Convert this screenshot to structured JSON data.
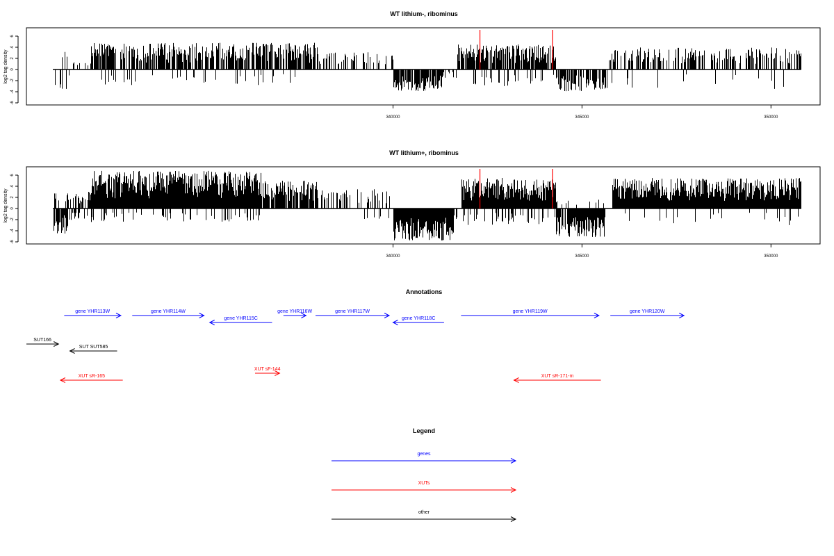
{
  "chart_data": [
    {
      "type": "bar",
      "title": "WT lithium-, ribominus",
      "ylabel": "log2 tag density",
      "xlabel": "",
      "xlim": [
        330300,
        351300
      ],
      "ylim": [
        -6,
        7.5
      ],
      "yticks": [
        -6,
        -4,
        -2,
        0,
        2,
        4,
        6
      ],
      "xticks": [
        340000,
        345000,
        350000
      ],
      "marker_lines": [
        342300,
        344220
      ],
      "grid": false,
      "region_start": 331000,
      "region_end": 350800,
      "segments": [
        {
          "start": 331000,
          "end": 331500,
          "strand": "plus",
          "density": 0.1,
          "max": 3.5
        },
        {
          "start": 331000,
          "end": 331500,
          "strand": "minus",
          "density": 0.15,
          "max": 3.5
        },
        {
          "start": 331500,
          "end": 332000,
          "strand": "plus",
          "density": 0.12,
          "max": 1.5
        },
        {
          "start": 332000,
          "end": 338000,
          "strand": "plus",
          "density": 0.75,
          "max": 4.8
        },
        {
          "start": 332000,
          "end": 338000,
          "strand": "minus",
          "density": 0.1,
          "max": 2.8
        },
        {
          "start": 338000,
          "end": 340000,
          "strand": "plus",
          "density": 0.3,
          "max": 3.2
        },
        {
          "start": 340000,
          "end": 341300,
          "strand": "minus",
          "density": 0.75,
          "max": 4.0
        },
        {
          "start": 341300,
          "end": 341700,
          "strand": "minus",
          "density": 0.3,
          "max": 1.5
        },
        {
          "start": 341700,
          "end": 344300,
          "strand": "plus",
          "density": 0.8,
          "max": 4.5
        },
        {
          "start": 342000,
          "end": 344300,
          "strand": "minus",
          "density": 0.15,
          "max": 3.0
        },
        {
          "start": 344300,
          "end": 345700,
          "strand": "minus",
          "density": 0.75,
          "max": 4.0
        },
        {
          "start": 345700,
          "end": 350800,
          "strand": "plus",
          "density": 0.5,
          "max": 4.0
        },
        {
          "start": 345700,
          "end": 350800,
          "strand": "minus",
          "density": 0.05,
          "max": 3.5
        }
      ]
    },
    {
      "type": "bar",
      "title": "WT lithium+, ribominus",
      "ylabel": "log2 tag density",
      "xlabel": "",
      "xlim": [
        330300,
        351300
      ],
      "ylim": [
        -6,
        7.5
      ],
      "yticks": [
        -6,
        -4,
        -2,
        0,
        2,
        4,
        6
      ],
      "xticks": [
        340000,
        345000,
        350000
      ],
      "marker_lines": [
        342300,
        344220
      ],
      "grid": false,
      "region_start": 331000,
      "region_end": 350800,
      "segments": [
        {
          "start": 331000,
          "end": 331400,
          "strand": "minus",
          "density": 0.9,
          "max": 4.5
        },
        {
          "start": 331000,
          "end": 331400,
          "strand": "plus",
          "density": 0.4,
          "max": 3.0
        },
        {
          "start": 331400,
          "end": 332000,
          "strand": "plus",
          "density": 0.5,
          "max": 3.0
        },
        {
          "start": 331400,
          "end": 332000,
          "strand": "minus",
          "density": 0.3,
          "max": 2.5
        },
        {
          "start": 332000,
          "end": 336500,
          "strand": "plus",
          "density": 1.0,
          "max": 6.8
        },
        {
          "start": 332000,
          "end": 336500,
          "strand": "minus",
          "density": 0.2,
          "max": 2.5
        },
        {
          "start": 336500,
          "end": 338000,
          "strand": "plus",
          "density": 0.8,
          "max": 5.0
        },
        {
          "start": 338000,
          "end": 340000,
          "strand": "plus",
          "density": 0.35,
          "max": 3.5
        },
        {
          "start": 339000,
          "end": 340000,
          "strand": "minus",
          "density": 0.1,
          "max": 2.5
        },
        {
          "start": 340000,
          "end": 341600,
          "strand": "minus",
          "density": 1.0,
          "max": 5.8
        },
        {
          "start": 341600,
          "end": 341800,
          "strand": "minus",
          "density": 0.4,
          "max": 2.0
        },
        {
          "start": 341800,
          "end": 344300,
          "strand": "plus",
          "density": 1.0,
          "max": 5.5
        },
        {
          "start": 341800,
          "end": 344300,
          "strand": "minus",
          "density": 0.25,
          "max": 3.0
        },
        {
          "start": 344300,
          "end": 345600,
          "strand": "minus",
          "density": 0.95,
          "max": 5.2
        },
        {
          "start": 344300,
          "end": 345600,
          "strand": "plus",
          "density": 0.15,
          "max": 2.0
        },
        {
          "start": 345800,
          "end": 350800,
          "strand": "plus",
          "density": 1.0,
          "max": 5.5
        },
        {
          "start": 345800,
          "end": 350800,
          "strand": "minus",
          "density": 0.08,
          "max": 3.0
        }
      ]
    }
  ],
  "annotations": {
    "title": "Annotations",
    "xlim": [
      330300,
      351300
    ],
    "items": [
      {
        "label": "gene YHR113W",
        "start": 331300,
        "end": 332800,
        "strand": "+",
        "row": 0,
        "category": "genes"
      },
      {
        "label": "gene YHR114W",
        "start": 333100,
        "end": 335000,
        "strand": "+",
        "row": 0,
        "category": "genes"
      },
      {
        "label": "gene YHR115C",
        "start": 335150,
        "end": 336800,
        "strand": "-",
        "row": 1,
        "category": "genes"
      },
      {
        "label": "gene YHR116W",
        "start": 337100,
        "end": 337700,
        "strand": "+",
        "row": 0,
        "category": "genes"
      },
      {
        "label": "gene YHR117W",
        "start": 337950,
        "end": 339900,
        "strand": "+",
        "row": 0,
        "category": "genes"
      },
      {
        "label": "gene YHR118C",
        "start": 340000,
        "end": 341350,
        "strand": "-",
        "row": 1,
        "category": "genes"
      },
      {
        "label": "gene YHR119W",
        "start": 341800,
        "end": 345450,
        "strand": "+",
        "row": 0,
        "category": "genes"
      },
      {
        "label": "gene YHR120W",
        "start": 345750,
        "end": 347700,
        "strand": "+",
        "row": 0,
        "category": "genes"
      },
      {
        "label": "SUT166",
        "start": 330300,
        "end": 331150,
        "strand": "+",
        "row": 3,
        "category": "other"
      },
      {
        "label": "SUT SUT585",
        "start": 331450,
        "end": 332700,
        "strand": "-",
        "row": 4,
        "category": "other"
      },
      {
        "label": "XUT sR-165",
        "start": 331200,
        "end": 332850,
        "strand": "-",
        "row": 6,
        "category": "XUTs"
      },
      {
        "label": "XUT sF-144",
        "start": 336350,
        "end": 337000,
        "strand": "+",
        "row": 5,
        "category": "XUTs"
      },
      {
        "label": "XUT sR-171-m",
        "start": 343200,
        "end": 345500,
        "strand": "-",
        "row": 6,
        "category": "XUTs"
      }
    ]
  },
  "legend": {
    "title": "Legend",
    "items": [
      {
        "label": "genes",
        "color": "#0000ff"
      },
      {
        "label": "XUTs",
        "color": "#ff0000"
      },
      {
        "label": "other",
        "color": "#000000"
      }
    ]
  },
  "colors": {
    "genes": "#0000ff",
    "XUTs": "#ff0000",
    "other": "#000000",
    "marker": "#ff0000",
    "bars": "#000000"
  }
}
